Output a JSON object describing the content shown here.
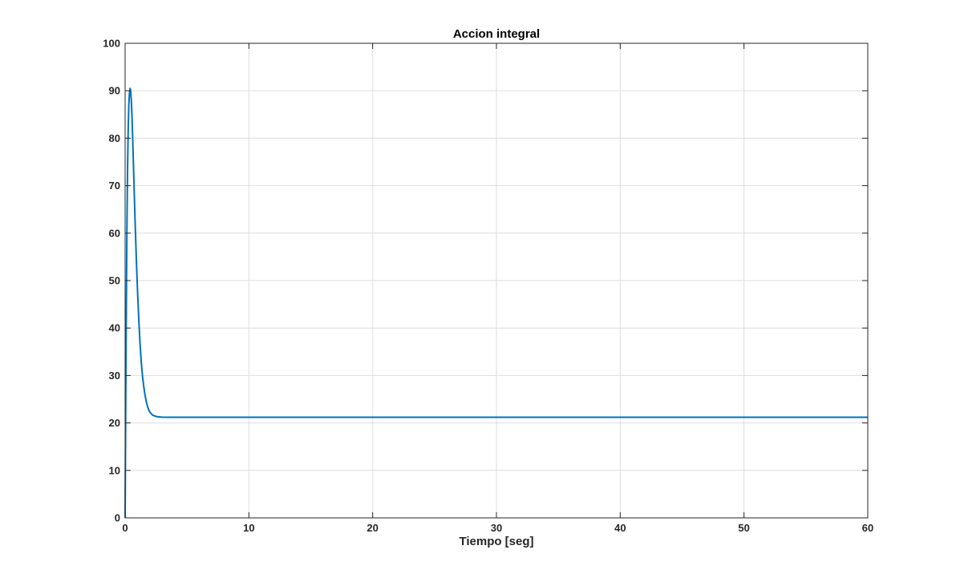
{
  "chart_data": {
    "type": "line",
    "title": "Accion integral",
    "xlabel": "Tiempo [seg]",
    "ylabel": "",
    "xlim": [
      0,
      60
    ],
    "ylim": [
      0,
      100
    ],
    "xticks": [
      0,
      10,
      20,
      30,
      40,
      50,
      60
    ],
    "yticks": [
      0,
      10,
      20,
      30,
      40,
      50,
      60,
      70,
      80,
      90,
      100
    ],
    "grid": true,
    "colors": {
      "line": "#0072BD",
      "grid": "#DEDEDE",
      "axis": "#262626"
    },
    "series": [
      {
        "x": [
          0,
          0.05,
          0.1,
          0.15,
          0.2,
          0.25,
          0.3,
          0.35,
          0.4,
          0.45,
          0.5,
          0.55,
          0.6,
          0.7,
          0.8,
          0.9,
          1.0,
          1.1,
          1.2,
          1.3,
          1.4,
          1.5,
          1.6,
          1.7,
          1.8,
          1.9,
          2.0,
          2.2,
          2.4,
          2.6,
          2.8,
          3.0,
          3.5,
          4.0,
          5.0,
          10,
          20,
          30,
          40,
          50,
          60
        ],
        "y": [
          0,
          24,
          45,
          62,
          74,
          82,
          87,
          89.5,
          90.5,
          90,
          88,
          85,
          81,
          72,
          63,
          55,
          48,
          42,
          37,
          33,
          30,
          27.8,
          26,
          24.6,
          23.6,
          22.8,
          22.3,
          21.7,
          21.45,
          21.32,
          21.26,
          21.23,
          21.2,
          21.2,
          21.2,
          21.2,
          21.2,
          21.2,
          21.2,
          21.2,
          21.2
        ]
      }
    ]
  }
}
